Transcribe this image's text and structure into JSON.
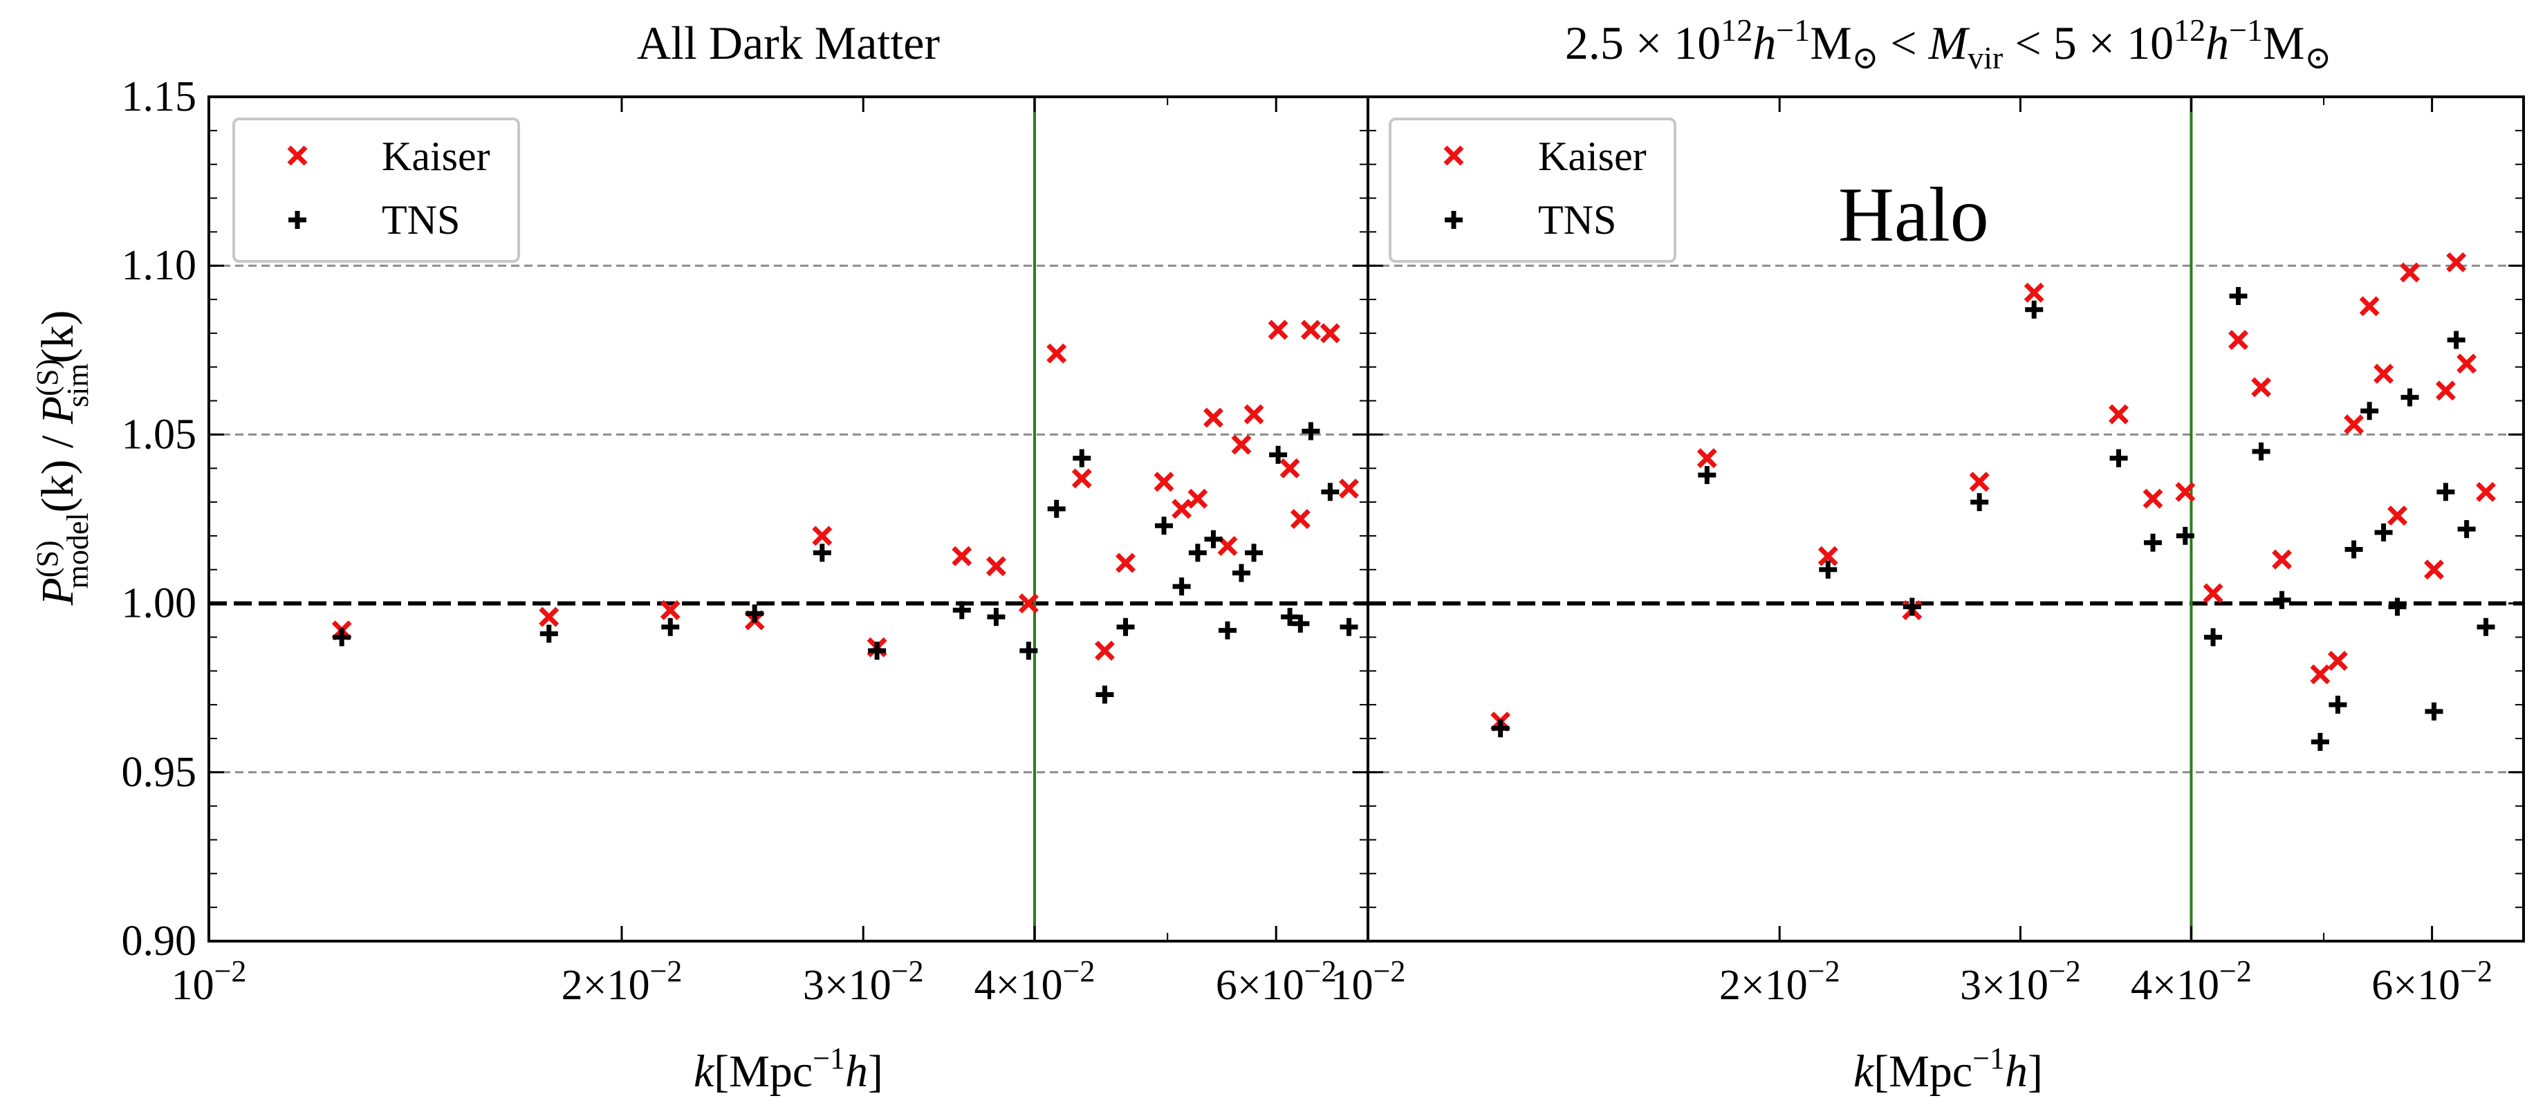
{
  "figure": {
    "ylabel": "P(S)model(k) / P(S)sim(k)",
    "ylabel_parts": {
      "main1": "P",
      "sup1": "(S)",
      "sub1": "model",
      "mid": "(k) / ",
      "main2": "P",
      "sup2": "(S)",
      "sub2": "sim",
      "end": "(k)"
    },
    "xlabel_parts": {
      "k": "k",
      "open": "[Mpc",
      "exp": "−1",
      "h": "h",
      "close": "]"
    }
  },
  "colors": {
    "kaiser": "#ee1111",
    "tns": "#000000",
    "vline": "#2e7d1e",
    "grid": "#8c8c8c",
    "reference": "#000000"
  },
  "chart_data": [
    {
      "type": "scatter",
      "title": "All Dark Matter",
      "xlabel": "k[Mpc−1h]",
      "ylabel": "P(S)model(k) / P(S)sim(k)",
      "xscale": "log",
      "xlim": [
        0.01,
        0.07
      ],
      "ylim": [
        0.9,
        1.15
      ],
      "yticks": [
        "0.90",
        "0.95",
        "1.00",
        "1.05",
        "1.10",
        "1.15"
      ],
      "yticks_values": [
        0.9,
        0.95,
        1.0,
        1.05,
        1.1,
        1.15
      ],
      "xticks": [
        {
          "value": 0.01,
          "base": "10",
          "exp": "−2",
          "mant": ""
        },
        {
          "value": 0.02,
          "base": "10",
          "exp": "−2",
          "mant": "2×"
        },
        {
          "value": 0.03,
          "base": "10",
          "exp": "−2",
          "mant": "3×"
        },
        {
          "value": 0.04,
          "base": "10",
          "exp": "−2",
          "mant": "4×"
        },
        {
          "value": 0.06,
          "base": "10",
          "exp": "−2",
          "mant": "6×"
        }
      ],
      "hlines_dashed": [
        0.95,
        1.05,
        1.1
      ],
      "reference_line": 1.0,
      "vline": 0.04,
      "legend": {
        "position": "upper-left",
        "entries": [
          "Kaiser",
          "TNS"
        ]
      },
      "annotation": "",
      "series": [
        {
          "name": "Kaiser",
          "marker": "x",
          "points": [
            [
              0.0125,
              0.992
            ],
            [
              0.0177,
              0.996
            ],
            [
              0.0217,
              0.998
            ],
            [
              0.025,
              0.995
            ],
            [
              0.028,
              1.02
            ],
            [
              0.0307,
              0.987
            ],
            [
              0.0354,
              1.014
            ],
            [
              0.0375,
              1.011
            ],
            [
              0.0396,
              1.0
            ],
            [
              0.0415,
              1.074
            ],
            [
              0.0433,
              1.037
            ],
            [
              0.045,
              0.986
            ],
            [
              0.0466,
              1.012
            ],
            [
              0.0497,
              1.036
            ],
            [
              0.0512,
              1.028
            ],
            [
              0.0526,
              1.031
            ],
            [
              0.054,
              1.055
            ],
            [
              0.0553,
              1.017
            ],
            [
              0.0566,
              1.047
            ],
            [
              0.0578,
              1.056
            ],
            [
              0.0602,
              1.081
            ],
            [
              0.0614,
              1.04
            ],
            [
              0.0625,
              1.025
            ],
            [
              0.0636,
              1.081
            ],
            [
              0.0657,
              1.08
            ],
            [
              0.0678,
              1.034
            ]
          ]
        },
        {
          "name": "TNS",
          "marker": "+",
          "points": [
            [
              0.0125,
              0.99
            ],
            [
              0.0177,
              0.991
            ],
            [
              0.0217,
              0.993
            ],
            [
              0.025,
              0.997
            ],
            [
              0.028,
              1.015
            ],
            [
              0.0307,
              0.986
            ],
            [
              0.0354,
              0.998
            ],
            [
              0.0375,
              0.996
            ],
            [
              0.0396,
              0.986
            ],
            [
              0.0415,
              1.028
            ],
            [
              0.0433,
              1.043
            ],
            [
              0.045,
              0.973
            ],
            [
              0.0466,
              0.993
            ],
            [
              0.0497,
              1.023
            ],
            [
              0.0512,
              1.005
            ],
            [
              0.0526,
              1.015
            ],
            [
              0.054,
              1.019
            ],
            [
              0.0553,
              0.992
            ],
            [
              0.0566,
              1.009
            ],
            [
              0.0578,
              1.015
            ],
            [
              0.0602,
              1.044
            ],
            [
              0.0614,
              0.996
            ],
            [
              0.0625,
              0.994
            ],
            [
              0.0636,
              1.051
            ],
            [
              0.0657,
              1.033
            ],
            [
              0.0678,
              0.993
            ]
          ]
        }
      ]
    },
    {
      "type": "scatter",
      "title": "2.5 × 10^12 h^−1 M⊙ < M_vir < 5 × 10^12 h^−1 M⊙",
      "title_parts": {
        "a": "2.5 × 10",
        "a_exp": "12",
        "a_h": "h",
        "a_hexp": "−1",
        "a_m": "M",
        "a_msub": "⊙",
        "lt": " < ",
        "mv": "M",
        "mv_sub": "vir",
        "b": "5 × 10",
        "b_exp": "12",
        "b_h": "h",
        "b_hexp": "−1",
        "b_m": "M",
        "b_msub": "⊙"
      },
      "xlabel": "k[Mpc−1h]",
      "xscale": "log",
      "xlim": [
        0.01,
        0.07
      ],
      "ylim": [
        0.9,
        1.15
      ],
      "xticks": [
        {
          "value": 0.01,
          "base": "10",
          "exp": "−2",
          "mant": ""
        },
        {
          "value": 0.02,
          "base": "10",
          "exp": "−2",
          "mant": "2×"
        },
        {
          "value": 0.03,
          "base": "10",
          "exp": "−2",
          "mant": "3×"
        },
        {
          "value": 0.04,
          "base": "10",
          "exp": "−2",
          "mant": "4×"
        },
        {
          "value": 0.06,
          "base": "10",
          "exp": "−2",
          "mant": "6×"
        }
      ],
      "hlines_dashed": [
        0.95,
        1.05,
        1.1
      ],
      "reference_line": 1.0,
      "vline": 0.04,
      "legend": {
        "position": "upper-left",
        "entries": [
          "Kaiser",
          "TNS"
        ]
      },
      "annotation": "Halo",
      "series": [
        {
          "name": "Kaiser",
          "marker": "x",
          "points": [
            [
              0.0125,
              0.965
            ],
            [
              0.0177,
              1.043
            ],
            [
              0.0217,
              1.014
            ],
            [
              0.025,
              0.998
            ],
            [
              0.028,
              1.036
            ],
            [
              0.0307,
              1.092
            ],
            [
              0.0354,
              1.056
            ],
            [
              0.0375,
              1.031
            ],
            [
              0.0396,
              1.033
            ],
            [
              0.0415,
              1.003
            ],
            [
              0.0433,
              1.078
            ],
            [
              0.045,
              1.064
            ],
            [
              0.0466,
              1.013
            ],
            [
              0.0497,
              0.979
            ],
            [
              0.0512,
              0.983
            ],
            [
              0.0526,
              1.053
            ],
            [
              0.054,
              1.088
            ],
            [
              0.0553,
              1.068
            ],
            [
              0.0566,
              1.026
            ],
            [
              0.0578,
              1.098
            ],
            [
              0.0602,
              1.01
            ],
            [
              0.0614,
              1.063
            ],
            [
              0.0625,
              1.101
            ],
            [
              0.0636,
              1.071
            ],
            [
              0.0657,
              1.033
            ]
          ]
        },
        {
          "name": "TNS",
          "marker": "+",
          "points": [
            [
              0.0125,
              0.963
            ],
            [
              0.0177,
              1.038
            ],
            [
              0.0217,
              1.01
            ],
            [
              0.025,
              0.999
            ],
            [
              0.028,
              1.03
            ],
            [
              0.0307,
              1.087
            ],
            [
              0.0354,
              1.043
            ],
            [
              0.0375,
              1.018
            ],
            [
              0.0396,
              1.02
            ],
            [
              0.0415,
              0.99
            ],
            [
              0.0433,
              1.091
            ],
            [
              0.045,
              1.045
            ],
            [
              0.0466,
              1.001
            ],
            [
              0.0497,
              0.959
            ],
            [
              0.0512,
              0.97
            ],
            [
              0.0526,
              1.016
            ],
            [
              0.054,
              1.057
            ],
            [
              0.0553,
              1.021
            ],
            [
              0.0566,
              0.999
            ],
            [
              0.0578,
              1.061
            ],
            [
              0.0602,
              0.968
            ],
            [
              0.0614,
              1.033
            ],
            [
              0.0625,
              1.078
            ],
            [
              0.0636,
              1.022
            ],
            [
              0.0657,
              0.993
            ]
          ]
        }
      ]
    }
  ]
}
